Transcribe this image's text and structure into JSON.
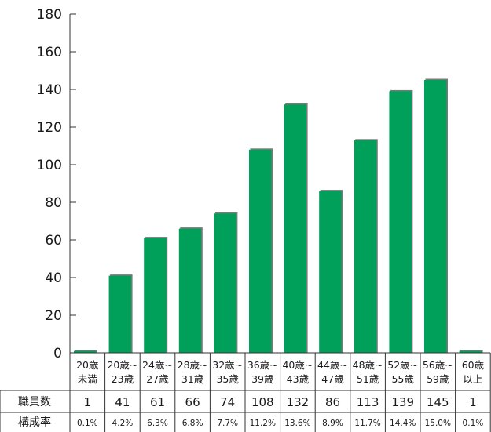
{
  "chart_data": {
    "type": "bar",
    "categories": [
      [
        "20歳",
        "未満"
      ],
      [
        "20歳~",
        "23歳"
      ],
      [
        "24歳~",
        "27歳"
      ],
      [
        "28歳~",
        "31歳"
      ],
      [
        "32歳~",
        "35歳"
      ],
      [
        "36歳~",
        "39歳"
      ],
      [
        "40歳~",
        "43歳"
      ],
      [
        "44歳~",
        "47歳"
      ],
      [
        "48歳~",
        "51歳"
      ],
      [
        "52歳~",
        "55歳"
      ],
      [
        "56歳~",
        "59歳"
      ],
      [
        "60歳",
        "以上"
      ]
    ],
    "values": [
      1,
      41,
      61,
      66,
      74,
      108,
      132,
      86,
      113,
      139,
      145,
      1
    ],
    "percentages": [
      "0.1%",
      "4.2%",
      "6.3%",
      "6.8%",
      "7.7%",
      "11.2%",
      "13.6%",
      "8.9%",
      "11.7%",
      "14.4%",
      "15.0%",
      "0.1%"
    ],
    "ylim": [
      0,
      180
    ],
    "yticks": [
      0,
      20,
      40,
      60,
      80,
      100,
      120,
      140,
      160,
      180
    ],
    "title": "",
    "xlabel": "",
    "ylabel": "",
    "grid": false,
    "bar_color": "#00a05a",
    "table": {
      "count_label": "職員数",
      "rate_label": "構成率"
    }
  }
}
